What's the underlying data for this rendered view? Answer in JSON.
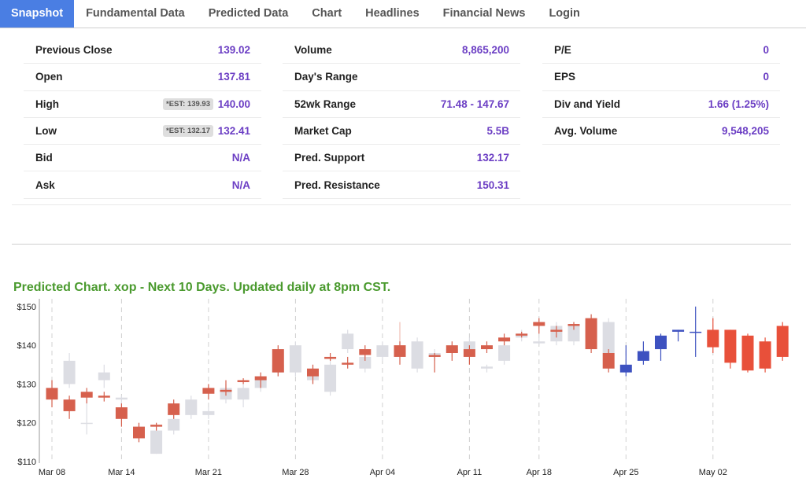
{
  "tabs": [
    {
      "label": "Snapshot",
      "active": true
    },
    {
      "label": "Fundamental Data"
    },
    {
      "label": "Predicted Data"
    },
    {
      "label": "Chart"
    },
    {
      "label": "Headlines"
    },
    {
      "label": "Financial News"
    },
    {
      "label": "Login"
    }
  ],
  "stats": {
    "col1": [
      {
        "label": "Previous Close",
        "value": "139.02"
      },
      {
        "label": "Open",
        "value": "137.81"
      },
      {
        "label": "High",
        "value": "140.00",
        "est": "*EST: 139.93"
      },
      {
        "label": "Low",
        "value": "132.41",
        "est": "*EST: 132.17"
      },
      {
        "label": "Bid",
        "value": "N/A"
      },
      {
        "label": "Ask",
        "value": "N/A"
      }
    ],
    "col2": [
      {
        "label": "Volume",
        "value": "8,865,200"
      },
      {
        "label": "Day's Range",
        "value": ""
      },
      {
        "label": "52wk Range",
        "value": "71.48 - 147.67"
      },
      {
        "label": "Market Cap",
        "value": "5.5B"
      },
      {
        "label": "Pred. Support",
        "value": "132.17"
      },
      {
        "label": "Pred. Resistance",
        "value": "150.31"
      }
    ],
    "col3": [
      {
        "label": "P/E",
        "value": "0"
      },
      {
        "label": "EPS",
        "value": "0"
      },
      {
        "label": "Div and Yield",
        "value": "1.66 (1.25%)"
      },
      {
        "label": "Avg. Volume",
        "value": "9,548,205"
      }
    ]
  },
  "chart_title": "Predicted Chart. xop - Next 10 Days. Updated daily at 8pm CST.",
  "colors": {
    "accent": "#4a7ee3",
    "value_text": "#6c3fc4",
    "title_green": "#4a9a2e",
    "up_actual": "#8e9ab3",
    "down_actual": "#d6604d",
    "up_pred_light": "#dcdde3",
    "down_pred_light": "#f0bdb5",
    "up_forecast": "#3d51c0",
    "down_forecast": "#e8503a"
  },
  "chart_data": {
    "type": "candlestick",
    "ylim": [
      110,
      152
    ],
    "yticks": [
      "$110",
      "$120",
      "$130",
      "$140",
      "$150"
    ],
    "ytick_values": [
      110,
      120,
      130,
      140,
      150
    ],
    "xticks": [
      "Mar 08",
      "Mar 14",
      "Mar 21",
      "Mar 28",
      "Apr 04",
      "Apr 11",
      "Apr 18",
      "Apr 25",
      "May 02"
    ],
    "xtick_index": [
      0,
      4,
      9,
      14,
      19,
      24,
      28,
      33,
      38
    ],
    "series": [
      {
        "name": "actual",
        "candles": [
          {
            "i": 0,
            "o": 129,
            "c": 126,
            "h": 131,
            "l": 124
          },
          {
            "i": 1,
            "o": 126,
            "c": 123,
            "h": 127,
            "l": 121
          },
          {
            "i": 2,
            "o": 128,
            "c": 126.5,
            "h": 129,
            "l": 125
          },
          {
            "i": 3,
            "o": 127,
            "c": 126.5,
            "h": 128,
            "l": 125.5
          },
          {
            "i": 4,
            "o": 124,
            "c": 121,
            "h": 125,
            "l": 119
          },
          {
            "i": 5,
            "o": 119,
            "c": 116,
            "h": 120,
            "l": 115
          },
          {
            "i": 6,
            "o": 119.5,
            "c": 119,
            "h": 120,
            "l": 118
          },
          {
            "i": 7,
            "o": 125,
            "c": 122,
            "h": 126,
            "l": 121
          },
          {
            "i": 9,
            "o": 129,
            "c": 127.5,
            "h": 130,
            "l": 126
          },
          {
            "i": 10,
            "o": 128.5,
            "c": 128,
            "h": 131,
            "l": 127
          },
          {
            "i": 11,
            "o": 131,
            "c": 130.5,
            "h": 131.5,
            "l": 130
          },
          {
            "i": 12,
            "o": 132,
            "c": 131,
            "h": 133,
            "l": 129
          },
          {
            "i": 13,
            "o": 139,
            "c": 133,
            "h": 140,
            "l": 132
          },
          {
            "i": 15,
            "o": 134,
            "c": 132,
            "h": 135,
            "l": 130
          },
          {
            "i": 16,
            "o": 137,
            "c": 136.5,
            "h": 138,
            "l": 136
          },
          {
            "i": 17,
            "o": 135.5,
            "c": 135,
            "h": 137,
            "l": 134
          },
          {
            "i": 18,
            "o": 139,
            "c": 137.5,
            "h": 140,
            "l": 136
          },
          {
            "i": 20,
            "o": 140,
            "c": 137,
            "h": 141,
            "l": 135
          },
          {
            "i": 22,
            "o": 137.5,
            "c": 137,
            "h": 138,
            "l": 133
          },
          {
            "i": 23,
            "o": 140,
            "c": 138,
            "h": 141,
            "l": 136
          },
          {
            "i": 24,
            "o": 139,
            "c": 137,
            "h": 140,
            "l": 135
          },
          {
            "i": 25,
            "o": 140,
            "c": 139,
            "h": 141,
            "l": 138
          },
          {
            "i": 26,
            "o": 142,
            "c": 141,
            "h": 143,
            "l": 140
          },
          {
            "i": 27,
            "o": 143,
            "c": 142.5,
            "h": 143.5,
            "l": 142
          },
          {
            "i": 28,
            "o": 146,
            "c": 145,
            "h": 147,
            "l": 143
          },
          {
            "i": 29,
            "o": 144,
            "c": 143.5,
            "h": 145,
            "l": 142
          },
          {
            "i": 30,
            "o": 145.5,
            "c": 145,
            "h": 146,
            "l": 144
          },
          {
            "i": 31,
            "o": 147,
            "c": 139,
            "h": 148,
            "l": 138
          },
          {
            "i": 32,
            "o": 138,
            "c": 134,
            "h": 139,
            "l": 133
          }
        ]
      },
      {
        "name": "predicted",
        "candles": [
          {
            "i": 0,
            "o": 127,
            "c": 129,
            "h": 131,
            "l": 126
          },
          {
            "i": 1,
            "o": 130,
            "c": 136,
            "h": 138,
            "l": 129
          },
          {
            "i": 2,
            "o": 120,
            "c": 120,
            "h": 126,
            "l": 117
          },
          {
            "i": 3,
            "o": 131,
            "c": 133,
            "h": 135,
            "l": 129
          },
          {
            "i": 4,
            "o": 126,
            "c": 126.5,
            "h": 127,
            "l": 121
          },
          {
            "i": 5,
            "o": 118,
            "c": 119,
            "h": 120,
            "l": 115
          },
          {
            "i": 6,
            "o": 112,
            "c": 118,
            "h": 120,
            "l": 112
          },
          {
            "i": 7,
            "o": 118,
            "c": 121,
            "h": 123,
            "l": 117
          },
          {
            "i": 8,
            "o": 122,
            "c": 126,
            "h": 127,
            "l": 121
          },
          {
            "i": 9,
            "o": 122,
            "c": 123,
            "h": 124,
            "l": 121
          },
          {
            "i": 10,
            "o": 126,
            "c": 129,
            "h": 130,
            "l": 125
          },
          {
            "i": 11,
            "o": 126,
            "c": 129,
            "h": 130,
            "l": 124
          },
          {
            "i": 12,
            "o": 129,
            "c": 131,
            "h": 132,
            "l": 128
          },
          {
            "i": 13,
            "o": 133,
            "c": 135,
            "h": 136,
            "l": 132
          },
          {
            "i": 14,
            "o": 133,
            "c": 140,
            "h": 141,
            "l": 132
          },
          {
            "i": 15,
            "o": 131,
            "c": 133,
            "h": 135,
            "l": 130
          },
          {
            "i": 16,
            "o": 128,
            "c": 135,
            "h": 137,
            "l": 127
          },
          {
            "i": 17,
            "o": 139,
            "c": 143,
            "h": 144,
            "l": 138
          },
          {
            "i": 18,
            "o": 134,
            "c": 137,
            "h": 139,
            "l": 133
          },
          {
            "i": 19,
            "o": 137,
            "c": 140,
            "h": 141,
            "l": 136
          },
          {
            "i": 20,
            "o": 140,
            "c": 139,
            "h": 146,
            "l": 138
          },
          {
            "i": 21,
            "o": 134,
            "c": 141,
            "h": 142,
            "l": 133
          },
          {
            "i": 22,
            "o": 137,
            "c": 138,
            "h": 139,
            "l": 136
          },
          {
            "i": 23,
            "o": 138,
            "c": 139,
            "h": 140,
            "l": 137
          },
          {
            "i": 24,
            "o": 139,
            "c": 141,
            "h": 142,
            "l": 136
          },
          {
            "i": 25,
            "o": 134,
            "c": 134.5,
            "h": 135,
            "l": 133
          },
          {
            "i": 26,
            "o": 136,
            "c": 140,
            "h": 141,
            "l": 135
          },
          {
            "i": 27,
            "o": 142,
            "c": 143,
            "h": 144,
            "l": 141
          },
          {
            "i": 28,
            "o": 140.5,
            "c": 141,
            "h": 142,
            "l": 140
          },
          {
            "i": 29,
            "o": 141,
            "c": 145,
            "h": 146,
            "l": 140
          },
          {
            "i": 30,
            "o": 141,
            "c": 145,
            "h": 146,
            "l": 140
          },
          {
            "i": 31,
            "o": 142,
            "c": 146,
            "h": 148,
            "l": 141
          },
          {
            "i": 32,
            "o": 138,
            "c": 146,
            "h": 147,
            "l": 135
          }
        ]
      },
      {
        "name": "forecast",
        "candles": [
          {
            "i": 33,
            "o": 133,
            "c": 135,
            "h": 140,
            "l": 132
          },
          {
            "i": 34,
            "o": 136,
            "c": 138.5,
            "h": 141,
            "l": 135
          },
          {
            "i": 35,
            "o": 139,
            "c": 142.5,
            "h": 143,
            "l": 136
          },
          {
            "i": 36,
            "o": 143.5,
            "c": 144,
            "h": 144,
            "l": 141
          },
          {
            "i": 37,
            "o": 143.5,
            "c": 143.5,
            "h": 150,
            "l": 137
          },
          {
            "i": 38,
            "o": 144,
            "c": 139.5,
            "h": 147,
            "l": 138
          },
          {
            "i": 39,
            "o": 144,
            "c": 135.5,
            "h": 144,
            "l": 134
          },
          {
            "i": 40,
            "o": 142.5,
            "c": 133.5,
            "h": 143,
            "l": 133
          },
          {
            "i": 41,
            "o": 141,
            "c": 134,
            "h": 142,
            "l": 133
          },
          {
            "i": 42,
            "o": 145,
            "c": 137,
            "h": 146,
            "l": 136
          }
        ]
      }
    ]
  }
}
